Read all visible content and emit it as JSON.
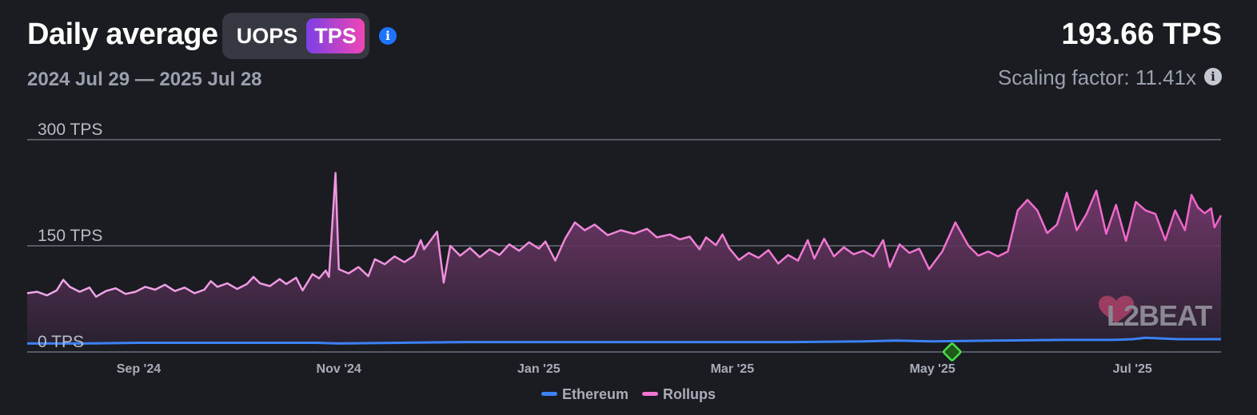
{
  "header": {
    "title": "Daily average",
    "toggle": {
      "option_uops": "UOPS",
      "option_tps": "TPS",
      "selected": "TPS"
    },
    "info_icon": "info-icon",
    "date_range": "2024 Jul 29 — 2025 Jul 28",
    "current_value": "193.66 TPS",
    "scaling_factor": "Scaling factor: 11.41x"
  },
  "colors": {
    "ethereum": "#3b82f6",
    "rollups": "#f472d0",
    "rollups_line_start": "#f0a8e8",
    "rollups_line_end": "#f062c8",
    "marker": "#4ade4a",
    "background": "#1b1c22"
  },
  "watermark": "L2BEAT",
  "chart_data": {
    "type": "line",
    "x_start": "2024-07-29",
    "x_end": "2025-07-28",
    "x_ticks": [
      {
        "date": "2024-09-01",
        "label": "Sep '24"
      },
      {
        "date": "2024-11-01",
        "label": "Nov '24"
      },
      {
        "date": "2025-01-01",
        "label": "Jan '25"
      },
      {
        "date": "2025-03-01",
        "label": "Mar '25"
      },
      {
        "date": "2025-05-01",
        "label": "May '25"
      },
      {
        "date": "2025-07-01",
        "label": "Jul '25"
      }
    ],
    "y_ticks": [
      {
        "value": 0,
        "label": "0 TPS"
      },
      {
        "value": 150,
        "label": "150 TPS"
      },
      {
        "value": 300,
        "label": "300 TPS"
      }
    ],
    "ylim": [
      0,
      300
    ],
    "legend": {
      "position": "bottom-center"
    },
    "series": [
      {
        "name": "Ethereum",
        "points": [
          [
            "2024-07-29",
            12
          ],
          [
            "2024-08-15",
            12
          ],
          [
            "2024-09-01",
            13
          ],
          [
            "2024-09-20",
            13
          ],
          [
            "2024-10-10",
            13
          ],
          [
            "2024-10-25",
            13
          ],
          [
            "2024-11-01",
            12
          ],
          [
            "2024-11-20",
            13
          ],
          [
            "2024-12-10",
            14
          ],
          [
            "2025-01-01",
            14
          ],
          [
            "2025-01-20",
            14
          ],
          [
            "2025-02-10",
            14
          ],
          [
            "2025-03-01",
            14
          ],
          [
            "2025-03-20",
            14
          ],
          [
            "2025-04-10",
            15
          ],
          [
            "2025-04-20",
            16
          ],
          [
            "2025-05-01",
            15
          ],
          [
            "2025-05-20",
            16
          ],
          [
            "2025-06-10",
            17
          ],
          [
            "2025-06-25",
            17
          ],
          [
            "2025-07-01",
            18
          ],
          [
            "2025-07-05",
            20
          ],
          [
            "2025-07-15",
            18
          ],
          [
            "2025-07-28",
            18
          ]
        ]
      },
      {
        "name": "Rollups",
        "points": [
          [
            "2024-07-29",
            83
          ],
          [
            "2024-08-01",
            85
          ],
          [
            "2024-08-04",
            80
          ],
          [
            "2024-08-07",
            87
          ],
          [
            "2024-08-09",
            102
          ],
          [
            "2024-08-11",
            92
          ],
          [
            "2024-08-14",
            85
          ],
          [
            "2024-08-17",
            91
          ],
          [
            "2024-08-19",
            78
          ],
          [
            "2024-08-22",
            86
          ],
          [
            "2024-08-25",
            90
          ],
          [
            "2024-08-28",
            82
          ],
          [
            "2024-08-31",
            85
          ],
          [
            "2024-09-03",
            92
          ],
          [
            "2024-09-06",
            88
          ],
          [
            "2024-09-09",
            95
          ],
          [
            "2024-09-12",
            86
          ],
          [
            "2024-09-15",
            91
          ],
          [
            "2024-09-18",
            83
          ],
          [
            "2024-09-21",
            88
          ],
          [
            "2024-09-23",
            100
          ],
          [
            "2024-09-25",
            92
          ],
          [
            "2024-09-28",
            97
          ],
          [
            "2024-10-01",
            89
          ],
          [
            "2024-10-04",
            96
          ],
          [
            "2024-10-06",
            106
          ],
          [
            "2024-10-08",
            97
          ],
          [
            "2024-10-11",
            93
          ],
          [
            "2024-10-14",
            103
          ],
          [
            "2024-10-16",
            96
          ],
          [
            "2024-10-19",
            105
          ],
          [
            "2024-10-21",
            87
          ],
          [
            "2024-10-24",
            110
          ],
          [
            "2024-10-26",
            104
          ],
          [
            "2024-10-28",
            115
          ],
          [
            "2024-10-29",
            106
          ],
          [
            "2024-10-31",
            253
          ],
          [
            "2024-11-01",
            117
          ],
          [
            "2024-11-04",
            111
          ],
          [
            "2024-11-07",
            120
          ],
          [
            "2024-11-10",
            107
          ],
          [
            "2024-11-12",
            131
          ],
          [
            "2024-11-15",
            124
          ],
          [
            "2024-11-18",
            135
          ],
          [
            "2024-11-21",
            127
          ],
          [
            "2024-11-24",
            136
          ],
          [
            "2024-11-26",
            158
          ],
          [
            "2024-11-27",
            145
          ],
          [
            "2024-12-01",
            170
          ],
          [
            "2024-12-03",
            98
          ],
          [
            "2024-12-05",
            150
          ],
          [
            "2024-12-08",
            136
          ],
          [
            "2024-12-11",
            147
          ],
          [
            "2024-12-14",
            134
          ],
          [
            "2024-12-17",
            145
          ],
          [
            "2024-12-20",
            137
          ],
          [
            "2024-12-23",
            152
          ],
          [
            "2024-12-26",
            143
          ],
          [
            "2024-12-29",
            155
          ],
          [
            "2025-01-01",
            146
          ],
          [
            "2025-01-03",
            156
          ],
          [
            "2025-01-06",
            129
          ],
          [
            "2025-01-09",
            160
          ],
          [
            "2025-01-12",
            183
          ],
          [
            "2025-01-15",
            172
          ],
          [
            "2025-01-18",
            180
          ],
          [
            "2025-01-22",
            165
          ],
          [
            "2025-01-26",
            172
          ],
          [
            "2025-01-30",
            167
          ],
          [
            "2025-02-03",
            174
          ],
          [
            "2025-02-06",
            162
          ],
          [
            "2025-02-10",
            166
          ],
          [
            "2025-02-13",
            159
          ],
          [
            "2025-02-16",
            163
          ],
          [
            "2025-02-19",
            145
          ],
          [
            "2025-02-21",
            162
          ],
          [
            "2025-02-24",
            151
          ],
          [
            "2025-02-26",
            166
          ],
          [
            "2025-02-28",
            147
          ],
          [
            "2025-03-03",
            130
          ],
          [
            "2025-03-06",
            140
          ],
          [
            "2025-03-09",
            133
          ],
          [
            "2025-03-12",
            144
          ],
          [
            "2025-03-15",
            125
          ],
          [
            "2025-03-18",
            137
          ],
          [
            "2025-03-21",
            129
          ],
          [
            "2025-03-24",
            158
          ],
          [
            "2025-03-26",
            132
          ],
          [
            "2025-03-29",
            160
          ],
          [
            "2025-04-01",
            135
          ],
          [
            "2025-04-04",
            148
          ],
          [
            "2025-04-07",
            138
          ],
          [
            "2025-04-10",
            143
          ],
          [
            "2025-04-13",
            135
          ],
          [
            "2025-04-16",
            158
          ],
          [
            "2025-04-18",
            120
          ],
          [
            "2025-04-21",
            152
          ],
          [
            "2025-04-24",
            140
          ],
          [
            "2025-04-27",
            146
          ],
          [
            "2025-04-30",
            117
          ],
          [
            "2025-05-04",
            142
          ],
          [
            "2025-05-08",
            183
          ],
          [
            "2025-05-12",
            150
          ],
          [
            "2025-05-15",
            136
          ],
          [
            "2025-05-18",
            142
          ],
          [
            "2025-05-21",
            135
          ],
          [
            "2025-05-24",
            142
          ],
          [
            "2025-05-27",
            200
          ],
          [
            "2025-05-30",
            215
          ],
          [
            "2025-06-02",
            200
          ],
          [
            "2025-06-05",
            168
          ],
          [
            "2025-06-08",
            180
          ],
          [
            "2025-06-11",
            225
          ],
          [
            "2025-06-14",
            172
          ],
          [
            "2025-06-17",
            195
          ],
          [
            "2025-06-20",
            228
          ],
          [
            "2025-06-23",
            167
          ],
          [
            "2025-06-26",
            208
          ],
          [
            "2025-06-29",
            157
          ],
          [
            "2025-07-02",
            212
          ],
          [
            "2025-07-05",
            200
          ],
          [
            "2025-07-08",
            195
          ],
          [
            "2025-07-11",
            158
          ],
          [
            "2025-07-14",
            200
          ],
          [
            "2025-07-17",
            172
          ],
          [
            "2025-07-19",
            222
          ],
          [
            "2025-07-21",
            204
          ],
          [
            "2025-07-23",
            196
          ],
          [
            "2025-07-25",
            203
          ],
          [
            "2025-07-26",
            176
          ],
          [
            "2025-07-28",
            193
          ]
        ]
      }
    ],
    "marker_date": "2025-05-07"
  }
}
